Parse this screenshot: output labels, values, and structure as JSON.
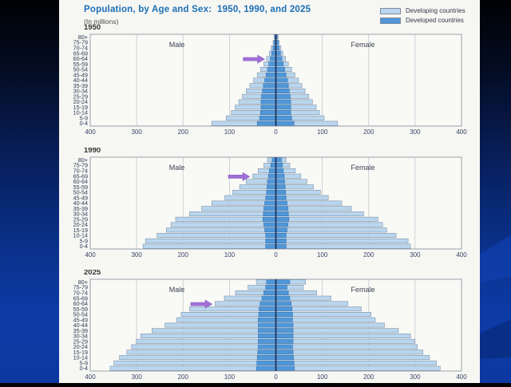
{
  "figure": {
    "title": "Population, by Age and Sex:  1950, 1990, and 2025",
    "subtitle": "(In millions)",
    "legend": [
      {
        "label": "Developing countries",
        "color": "#b9d6ee"
      },
      {
        "label": "Developed countries",
        "color": "#4f97d8"
      }
    ]
  },
  "colors": {
    "title_blue": "#1c6fb6",
    "panel_bg": "#f6f6f3",
    "bar_light": "#b9d6ee",
    "bar_dark": "#4f97d8",
    "bar_light_border": "#7f93a8",
    "bar_dark_border": "#3a72ae",
    "grid": "#c2c8d0",
    "frame": "#9aa3ae",
    "center_axis": "#1b2950",
    "arrow_purple": "#a06fd6",
    "text_dark": "#333333",
    "tick_text": "#3a4668"
  },
  "chart_data": [
    {
      "type": "bar",
      "subtype": "population-pyramid",
      "title": "1950",
      "male_label": "Male",
      "female_label": "Female",
      "unit": "millions",
      "xlim": [
        -400,
        400
      ],
      "x_tick_values": [
        -400,
        -300,
        -200,
        -100,
        0,
        100,
        200,
        300,
        400
      ],
      "x_tick_labels": [
        "400",
        "300",
        "200",
        "100",
        "0",
        "100",
        "200",
        "300",
        "400"
      ],
      "age_groups": [
        "80+",
        "75-79",
        "70-74",
        "65-69",
        "60-64",
        "55-59",
        "50-54",
        "45-49",
        "40-44",
        "35-39",
        "30-34",
        "25-29",
        "20-24",
        "15-19",
        "10-14",
        "5-9",
        "0-4"
      ],
      "series": [
        {
          "name": "Developing countries",
          "male": [
            4,
            6,
            10,
            14,
            20,
            26,
            33,
            40,
            48,
            56,
            64,
            72,
            80,
            88,
            96,
            107,
            138
          ],
          "female": [
            5,
            7,
            11,
            15,
            21,
            27,
            34,
            41,
            49,
            56,
            63,
            71,
            79,
            87,
            94,
            104,
            133
          ]
        },
        {
          "name": "Developed countries",
          "male": [
            2,
            4,
            6,
            9,
            12,
            15,
            18,
            21,
            24,
            27,
            29,
            31,
            32,
            32,
            33,
            35,
            40
          ],
          "female": [
            3,
            5,
            7,
            10,
            13,
            16,
            19,
            22,
            25,
            27,
            29,
            31,
            32,
            32,
            32,
            34,
            39
          ]
        }
      ],
      "arrow": {
        "points_to_age_group": "60-64",
        "side": "male",
        "tip_value": 24
      }
    },
    {
      "type": "bar",
      "subtype": "population-pyramid",
      "title": "1990",
      "male_label": "Male",
      "female_label": "Female",
      "unit": "millions",
      "xlim": [
        -400,
        400
      ],
      "x_tick_values": [
        -400,
        -300,
        -200,
        -100,
        0,
        100,
        200,
        300,
        400
      ],
      "x_tick_labels": [
        "400",
        "300",
        "200",
        "100",
        "0",
        "100",
        "200",
        "300",
        "400"
      ],
      "age_groups": [
        "80+",
        "75-79",
        "70-74",
        "65-69",
        "60-64",
        "55-59",
        "50-54",
        "45-49",
        "40-44",
        "35-39",
        "30-34",
        "25-29",
        "20-24",
        "15-19",
        "10-14",
        "5-9",
        "0-4"
      ],
      "series": [
        {
          "name": "Developing countries",
          "male": [
            18,
            26,
            38,
            50,
            64,
            78,
            93,
            110,
            138,
            160,
            186,
            216,
            226,
            236,
            256,
            281,
            286
          ],
          "female": [
            22,
            30,
            42,
            54,
            67,
            81,
            96,
            113,
            142,
            163,
            189,
            220,
            230,
            239,
            259,
            285,
            290
          ]
        },
        {
          "name": "Developed countries",
          "male": [
            8,
            11,
            14,
            16,
            18,
            19,
            20,
            22,
            24,
            26,
            27,
            28,
            26,
            24,
            22,
            22,
            22
          ],
          "female": [
            12,
            14,
            16,
            18,
            19,
            20,
            21,
            22,
            24,
            26,
            27,
            28,
            26,
            24,
            22,
            22,
            22
          ]
        }
      ],
      "arrow": {
        "points_to_age_group": "65-69",
        "side": "male",
        "tip_value": 56
      }
    },
    {
      "type": "bar",
      "subtype": "population-pyramid",
      "title": "2025",
      "male_label": "Male",
      "female_label": "Female",
      "unit": "millions",
      "xlim": [
        -400,
        400
      ],
      "x_tick_values": [
        -400,
        -300,
        -200,
        -100,
        0,
        100,
        200,
        300,
        400
      ],
      "x_tick_labels": [
        "400",
        "300",
        "200",
        "100",
        "0",
        "100",
        "200",
        "300",
        "400"
      ],
      "age_groups": [
        "80+",
        "75-79",
        "70-74",
        "65-69",
        "60-64",
        "55-59",
        "50-54",
        "45-49",
        "40-44",
        "35-39",
        "30-34",
        "25-29",
        "20-24",
        "15-19",
        "10-14",
        "5-9",
        "0-4"
      ],
      "series": [
        {
          "name": "Developing countries",
          "male": [
            42,
            60,
            87,
            111,
            131,
            186,
            204,
            214,
            239,
            267,
            291,
            301,
            311,
            321,
            337,
            349,
            357
          ],
          "female": [
            64,
            59,
            88,
            119,
            155,
            184,
            205,
            214,
            234,
            264,
            290,
            299,
            305,
            317,
            331,
            346,
            354
          ]
        },
        {
          "name": "Developed countries",
          "male": [
            20,
            22,
            26,
            30,
            34,
            36,
            37,
            38,
            38,
            38,
            38,
            38,
            38,
            39,
            40,
            41,
            42
          ],
          "female": [
            30,
            24,
            27,
            30,
            33,
            35,
            36,
            36,
            37,
            37,
            37,
            37,
            36,
            37,
            38,
            39,
            40
          ]
        }
      ],
      "arrow": {
        "points_to_age_group": "60-64",
        "side": "male",
        "tip_value": 137
      }
    }
  ]
}
